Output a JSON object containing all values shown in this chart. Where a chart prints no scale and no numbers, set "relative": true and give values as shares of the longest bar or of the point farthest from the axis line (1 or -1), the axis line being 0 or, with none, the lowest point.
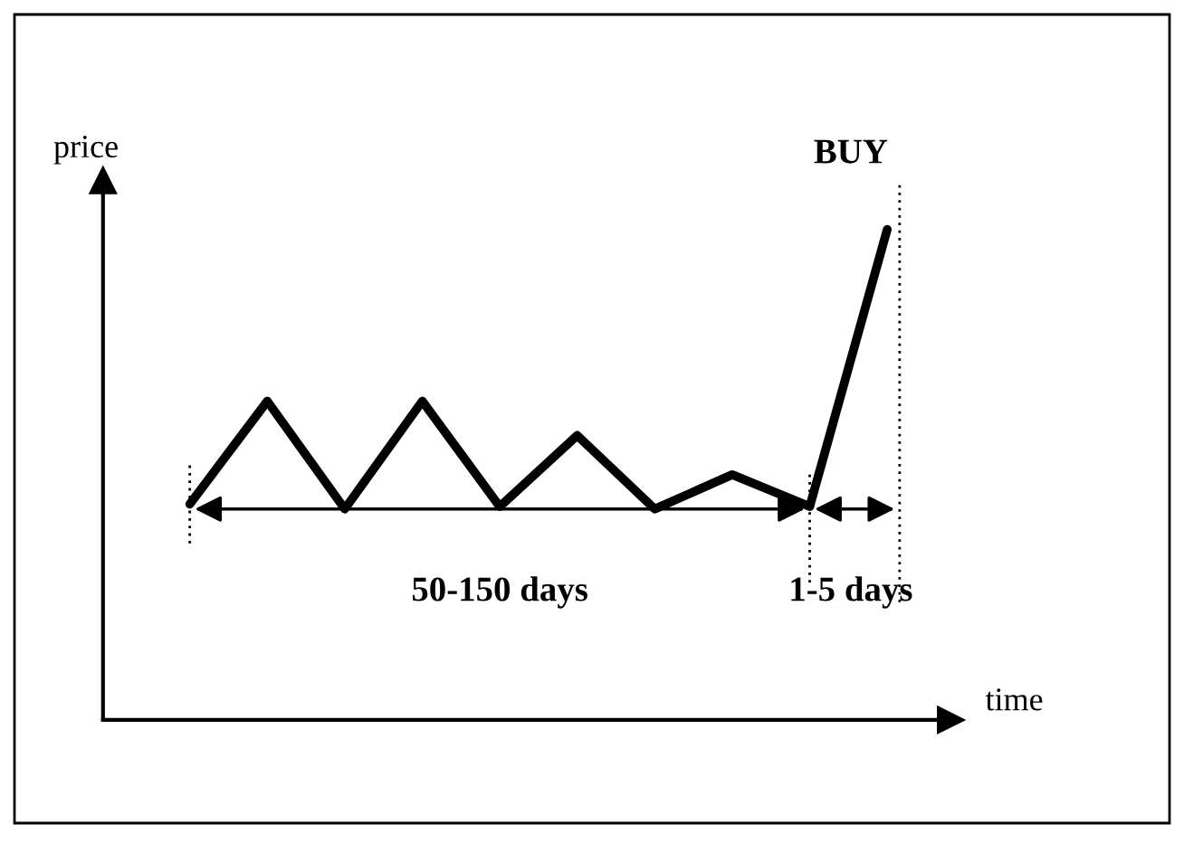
{
  "chart_data": {
    "type": "line",
    "relative": true,
    "xlabel": "time",
    "ylabel": "price",
    "categories": [
      null,
      null,
      null,
      null,
      null,
      null,
      null,
      null,
      null,
      null
    ],
    "series": [
      {
        "color": "#000000",
        "values": [
          0.44,
          0.65,
          0.43,
          0.65,
          0.435,
          0.58,
          0.43,
          0.5,
          0.435,
          1
        ]
      }
    ],
    "annotations": [
      "BUY",
      "50-150 days",
      "1-5 days"
    ]
  }
}
